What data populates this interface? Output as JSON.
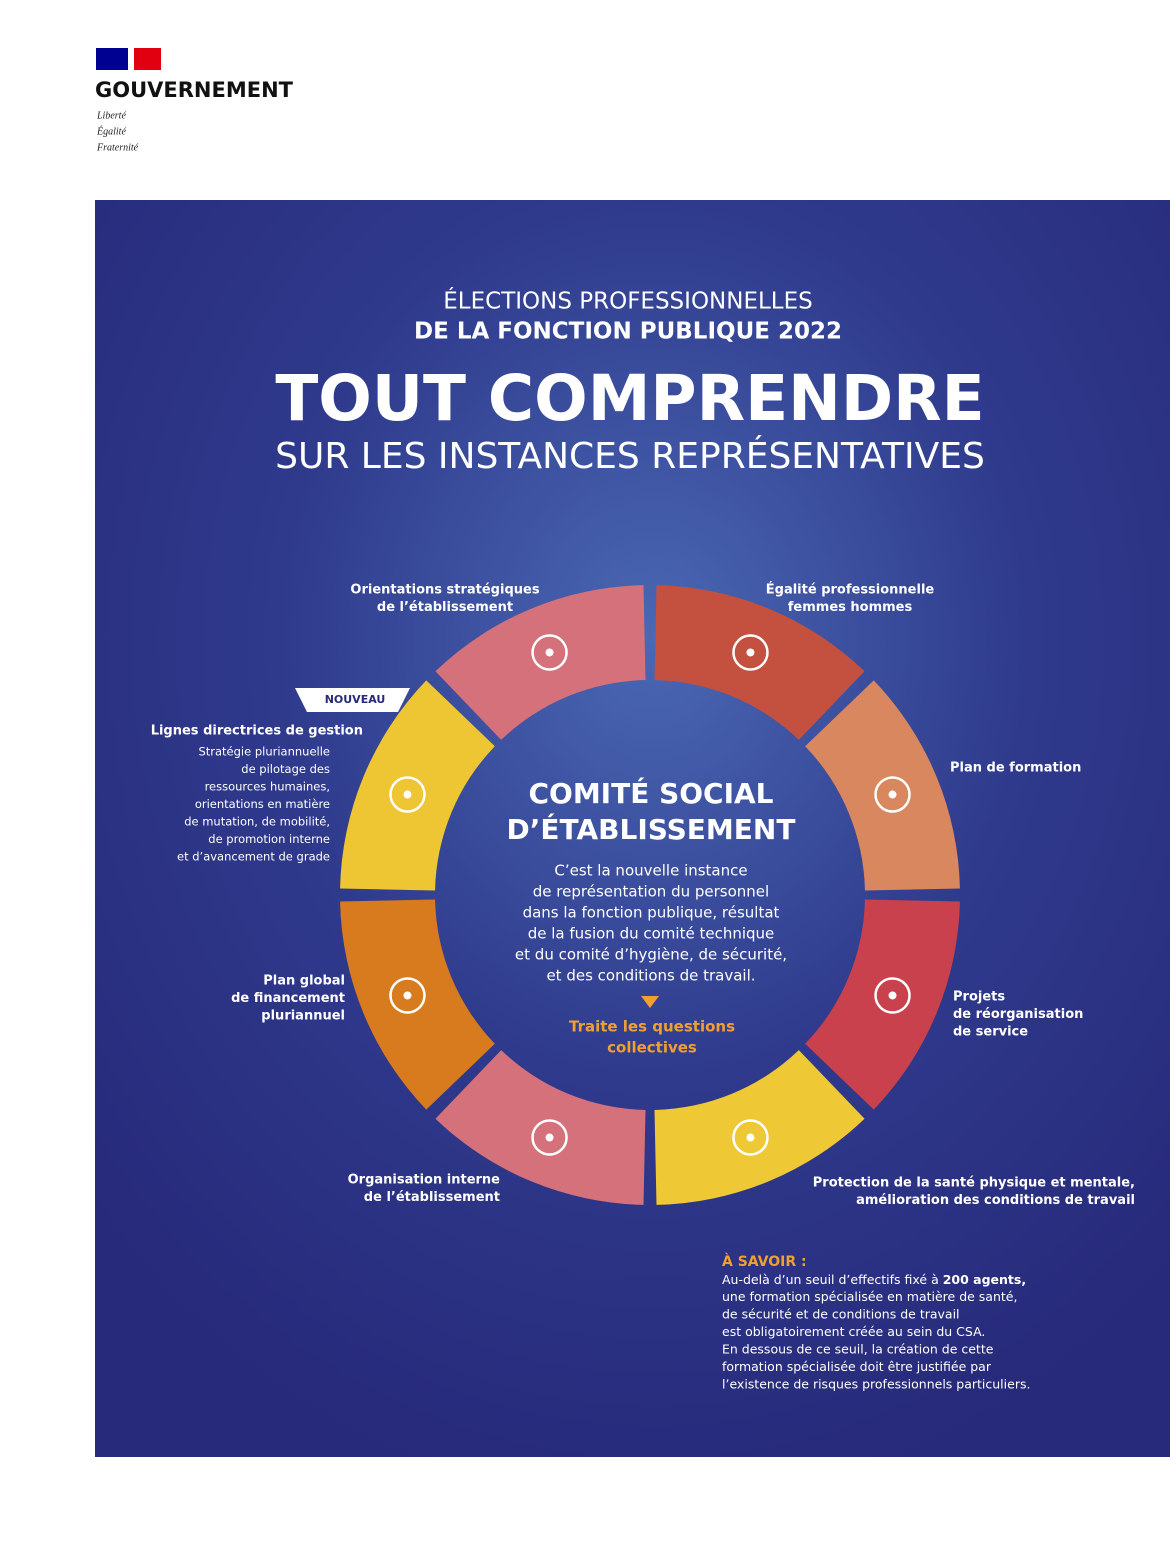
{
  "header": {
    "brand": "GOUVERNEMENT",
    "motto": [
      "Liberté",
      "Égalité",
      "Fraternité"
    ]
  },
  "infographic": {
    "kicker": [
      "ÉLECTIONS PROFESSIONNELLES",
      "DE LA FONCTION PUBLIQUE 2022"
    ],
    "title": "TOUT COMPRENDRE",
    "subtitle": "SUR LES INSTANCES REPRÉSENTATIVES",
    "center": {
      "title": [
        "COMITÉ SOCIAL",
        "D’ÉTABLISSEMENT"
      ],
      "description": [
        "C’est la nouvelle instance",
        "de représentation du personnel",
        "dans la fonction publique, résultat",
        "de la fusion du comité technique",
        "et du comité d’hygiène, de sécurité,",
        "et des conditions de travail."
      ],
      "action": [
        "Traite les questions",
        "collectives"
      ]
    },
    "segments": [
      {
        "label": [
          "Égalité professionnelle",
          "femmes hommes"
        ],
        "color": "#c4503f"
      },
      {
        "label": [
          "Plan de formation"
        ],
        "color": "#d8875f"
      },
      {
        "label": [
          "Projets",
          "de réorganisation",
          "de service"
        ],
        "color": "#c9414c"
      },
      {
        "label": [
          "Protection de la santé physique et mentale,",
          "amélioration des conditions de travail"
        ],
        "color": "#efc935"
      },
      {
        "label": [
          "Organisation interne",
          "de l’établissement"
        ],
        "color": "#d4717b"
      },
      {
        "label": [
          "Plan global",
          "de financement",
          "pluriannuel"
        ],
        "color": "#d77b1e"
      },
      {
        "label": [
          "Lignes directrices de gestion"
        ],
        "description": [
          "Stratégie pluriannuelle",
          "de pilotage des",
          "ressources humaines,",
          "orientations en matière",
          "de mutation, de mobilité,",
          "de promotion interne",
          "et d’avancement de grade"
        ],
        "badge": "NOUVEAU",
        "color": "#eec634"
      },
      {
        "label": [
          "Orientations stratégiques",
          "de l’établissement"
        ],
        "color": "#d4717b"
      }
    ],
    "note": {
      "title": "À SAVOIR :",
      "first_line": {
        "text": "Au-delà d’un seuil d’effectifs fixé à",
        "bold": "200 agents,"
      },
      "lines": [
        "une formation spécialisée en matière de santé,",
        "de sécurité et de conditions de travail",
        "est obligatoirement créée au sein du CSA.",
        "En dessous de ce seuil, la création de cette",
        "formation spécialisée doit être justifiée par",
        "l’existence de risques professionnels particuliers."
      ]
    }
  }
}
